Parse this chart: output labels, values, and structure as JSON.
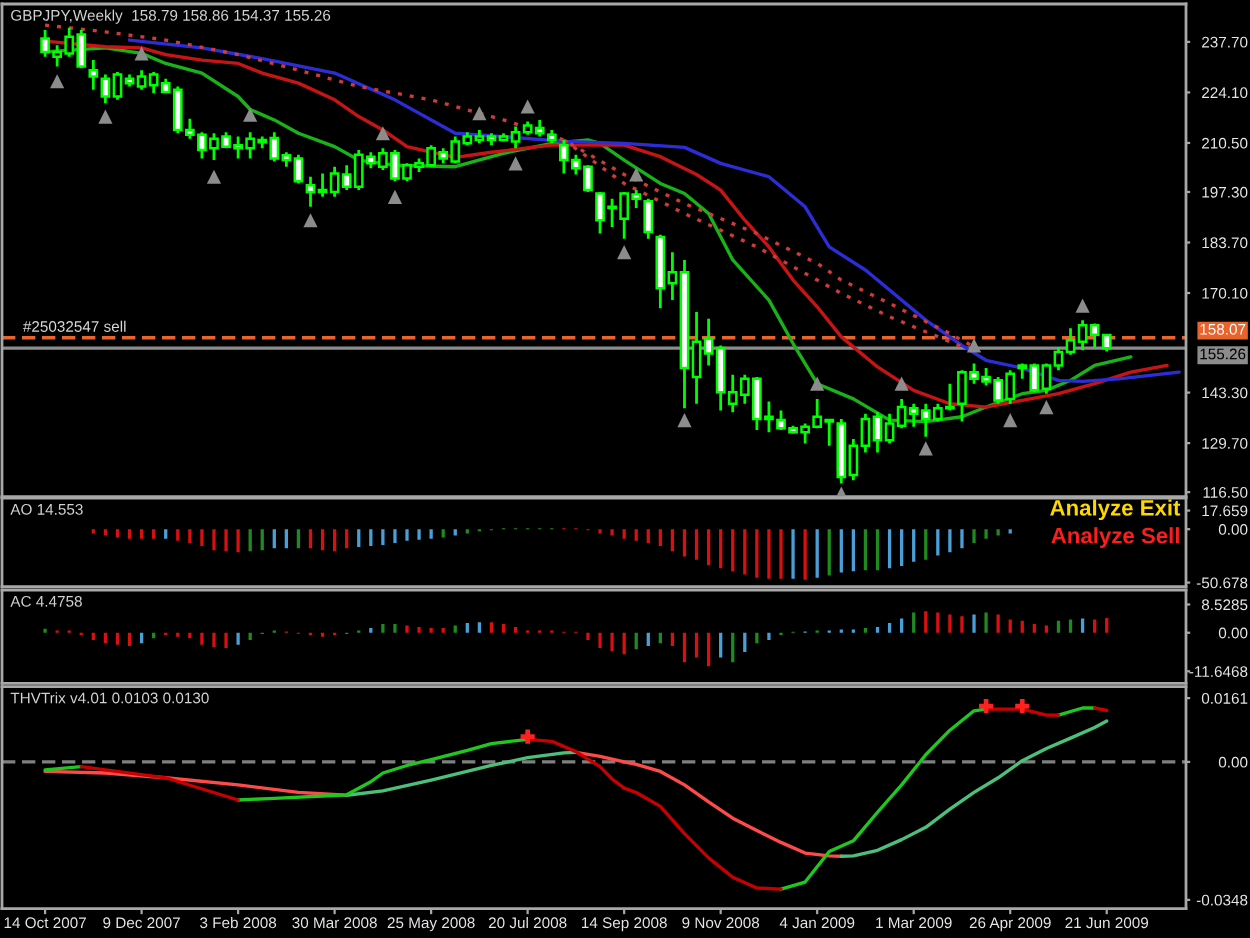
{
  "chart_data": [
    {
      "type": "candlestick",
      "title": "GBPJPY,Weekly  158.79 158.86 154.37 155.26",
      "color": "#00ff00",
      "x": [
        "2007-10-14",
        "2007-10-21",
        "2007-10-28",
        "2007-11-04",
        "2007-11-11",
        "2007-11-18",
        "2007-11-25",
        "2007-12-02",
        "2007-12-09",
        "2007-12-16",
        "2007-12-23",
        "2007-12-30",
        "2008-01-06",
        "2008-01-13",
        "2008-01-20",
        "2008-01-27",
        "2008-02-03",
        "2008-02-10",
        "2008-02-17",
        "2008-02-24",
        "2008-03-02",
        "2008-03-09",
        "2008-03-16",
        "2008-03-23",
        "2008-03-30",
        "2008-04-06",
        "2008-04-13",
        "2008-04-20",
        "2008-04-27",
        "2008-05-04",
        "2008-05-11",
        "2008-05-18",
        "2008-05-25",
        "2008-06-01",
        "2008-06-08",
        "2008-06-15",
        "2008-06-22",
        "2008-06-29",
        "2008-07-06",
        "2008-07-13",
        "2008-07-20",
        "2008-07-27",
        "2008-08-03",
        "2008-08-10",
        "2008-08-17",
        "2008-08-24",
        "2008-08-31",
        "2008-09-07",
        "2008-09-14",
        "2008-09-21",
        "2008-09-28",
        "2008-10-05",
        "2008-10-12",
        "2008-10-19",
        "2008-10-26",
        "2008-11-02",
        "2008-11-09",
        "2008-11-16",
        "2008-11-23",
        "2008-11-30",
        "2008-12-07",
        "2008-12-14",
        "2008-12-21",
        "2008-12-28",
        "2009-01-04",
        "2009-01-11",
        "2009-01-18",
        "2009-01-25",
        "2009-02-01",
        "2009-02-08",
        "2009-02-15",
        "2009-02-22",
        "2009-03-01",
        "2009-03-08",
        "2009-03-15",
        "2009-03-22",
        "2009-03-29",
        "2009-04-05",
        "2009-04-12",
        "2009-04-19",
        "2009-04-26",
        "2009-05-03",
        "2009-05-10",
        "2009-05-17",
        "2009-05-24",
        "2009-05-31",
        "2009-06-07",
        "2009-06-14",
        "2009-06-21"
      ],
      "ohlc": [
        [
          238.6,
          240.9,
          233.7,
          235.0
        ],
        [
          233.7,
          236.8,
          231.1,
          235.0
        ],
        [
          234.6,
          241.5,
          233.7,
          239.1
        ],
        [
          239.7,
          240.9,
          230.6,
          231.1
        ],
        [
          230.1,
          232.8,
          224.8,
          228.4
        ],
        [
          227.8,
          228.9,
          221.2,
          223.0
        ],
        [
          223.0,
          229.6,
          222.1,
          228.9
        ],
        [
          227.8,
          228.9,
          225.7,
          226.6
        ],
        [
          225.7,
          230.1,
          224.8,
          228.4
        ],
        [
          226.0,
          229.6,
          223.9,
          228.9
        ],
        [
          226.6,
          227.8,
          223.9,
          224.2
        ],
        [
          224.8,
          225.7,
          213.1,
          214.0
        ],
        [
          214.0,
          217.0,
          211.6,
          212.7
        ],
        [
          212.7,
          213.4,
          206.3,
          208.6
        ],
        [
          209.1,
          213.1,
          205.9,
          211.6
        ],
        [
          212.2,
          213.4,
          209.1,
          209.5
        ],
        [
          209.9,
          212.2,
          206.3,
          209.1
        ],
        [
          209.1,
          213.4,
          206.3,
          211.6
        ],
        [
          211.3,
          212.2,
          209.1,
          210.7
        ],
        [
          211.8,
          213.4,
          205.5,
          206.3
        ],
        [
          207.2,
          208.0,
          204.1,
          205.9
        ],
        [
          206.3,
          207.3,
          199.6,
          200.2
        ],
        [
          199.1,
          201.4,
          193.3,
          197.3
        ],
        [
          197.3,
          202.3,
          196.0,
          197.8
        ],
        [
          197.3,
          204.1,
          196.0,
          202.3
        ],
        [
          202.0,
          204.5,
          197.8,
          198.7
        ],
        [
          198.7,
          208.6,
          197.8,
          207.3
        ],
        [
          206.8,
          208.0,
          203.7,
          205.0
        ],
        [
          204.1,
          209.1,
          203.2,
          207.7
        ],
        [
          207.7,
          208.6,
          200.2,
          200.9
        ],
        [
          200.9,
          205.0,
          200.2,
          204.5
        ],
        [
          204.1,
          206.3,
          202.7,
          205.0
        ],
        [
          204.5,
          209.9,
          204.1,
          209.1
        ],
        [
          208.0,
          209.1,
          205.0,
          206.3
        ],
        [
          205.5,
          212.2,
          205.0,
          210.9
        ],
        [
          210.4,
          213.4,
          209.9,
          212.2
        ],
        [
          211.3,
          214.0,
          210.4,
          212.2
        ],
        [
          212.2,
          213.1,
          209.9,
          211.3
        ],
        [
          211.3,
          213.1,
          210.9,
          212.2
        ],
        [
          210.9,
          214.9,
          209.1,
          213.4
        ],
        [
          213.4,
          216.3,
          212.7,
          215.2
        ],
        [
          214.5,
          216.7,
          212.2,
          213.1
        ],
        [
          212.7,
          214.0,
          210.4,
          211.3
        ],
        [
          209.9,
          211.3,
          202.3,
          205.9
        ],
        [
          205.9,
          207.3,
          202.0,
          203.7
        ],
        [
          204.1,
          204.5,
          197.3,
          197.8
        ],
        [
          196.9,
          197.3,
          186.1,
          189.7
        ],
        [
          193.3,
          195.5,
          187.9,
          193.0
        ],
        [
          190.1,
          197.3,
          184.7,
          196.9
        ],
        [
          196.6,
          197.8,
          193.0,
          195.5
        ],
        [
          194.8,
          195.5,
          184.7,
          186.5
        ],
        [
          185.2,
          185.8,
          166.0,
          171.4
        ],
        [
          172.7,
          181.1,
          168.2,
          175.7
        ],
        [
          175.7,
          179.0,
          139.1,
          149.9
        ],
        [
          147.5,
          165.0,
          140.3,
          157.0
        ],
        [
          157.8,
          163.2,
          150.6,
          153.8
        ],
        [
          155.3,
          156.0,
          138.5,
          143.4
        ],
        [
          140.3,
          148.1,
          138.0,
          143.4
        ],
        [
          142.7,
          148.1,
          140.3,
          147.0
        ],
        [
          147.0,
          147.5,
          133.2,
          136.2
        ],
        [
          136.8,
          140.9,
          132.6,
          136.2
        ],
        [
          135.9,
          138.5,
          133.2,
          133.7
        ],
        [
          133.7,
          134.4,
          132.3,
          132.6
        ],
        [
          132.6,
          135.0,
          129.6,
          134.1
        ],
        [
          134.1,
          141.6,
          133.7,
          136.8
        ],
        [
          135.9,
          136.2,
          129.0,
          135.5
        ],
        [
          135.0,
          136.2,
          118.8,
          120.6
        ],
        [
          121.1,
          130.8,
          119.7,
          129.0
        ],
        [
          129.0,
          137.6,
          127.2,
          136.2
        ],
        [
          136.8,
          138.0,
          127.2,
          130.5
        ],
        [
          130.5,
          137.6,
          129.6,
          135.0
        ],
        [
          134.4,
          141.6,
          133.7,
          139.4
        ],
        [
          139.1,
          140.3,
          134.1,
          137.6
        ],
        [
          138.5,
          140.3,
          131.4,
          136.2
        ],
        [
          136.2,
          140.3,
          135.5,
          139.1
        ],
        [
          139.1,
          145.7,
          138.5,
          139.4
        ],
        [
          140.3,
          149.3,
          135.5,
          148.8
        ],
        [
          148.8,
          151.1,
          145.7,
          147.0
        ],
        [
          147.5,
          149.9,
          145.2,
          146.3
        ],
        [
          146.6,
          147.5,
          140.3,
          141.2
        ],
        [
          141.6,
          149.3,
          140.3,
          148.4
        ],
        [
          149.9,
          151.1,
          147.0,
          150.6
        ],
        [
          150.6,
          151.1,
          143.4,
          143.9
        ],
        [
          144.3,
          151.1,
          143.0,
          150.6
        ],
        [
          150.6,
          155.6,
          149.3,
          154.2
        ],
        [
          154.2,
          160.6,
          153.5,
          157.4
        ],
        [
          157.0,
          162.8,
          154.7,
          161.4
        ],
        [
          161.4,
          161.9,
          155.6,
          158.9
        ],
        [
          158.79,
          158.86,
          154.37,
          155.26
        ]
      ],
      "series": [
        {
          "type": "line",
          "color": "#19b319",
          "x": [
            "2007-10-14",
            "2007-11-18",
            "2007-12-09",
            "2007-12-23",
            "2008-01-13",
            "2008-02-03",
            "2008-02-10",
            "2008-02-24",
            "2008-03-09",
            "2008-03-30",
            "2008-04-13",
            "2008-05-04",
            "2008-06-08",
            "2008-07-06",
            "2008-08-03",
            "2008-08-24",
            "2008-08-31",
            "2008-09-14",
            "2008-10-05",
            "2008-10-19",
            "2008-11-02",
            "2008-11-16",
            "2008-12-07",
            "2008-12-21",
            "2009-01-04",
            "2009-01-25",
            "2009-02-15",
            "2009-03-08",
            "2009-03-29",
            "2009-04-12",
            "2009-05-03",
            "2009-05-17",
            "2009-05-31",
            "2009-06-14",
            "2009-07-05"
          ],
          "values": [
            235.0,
            236.1,
            234.6,
            231.9,
            229.3,
            223.0,
            219.5,
            216.7,
            213.1,
            209.5,
            205.9,
            204.5,
            204.1,
            207.7,
            210.4,
            211.3,
            210.4,
            205.9,
            199.6,
            196.9,
            191.5,
            179.0,
            168.2,
            156.5,
            145.7,
            141.6,
            135.9,
            135.5,
            136.8,
            139.4,
            143.0,
            143.9,
            146.6,
            150.6,
            152.9
          ]
        },
        {
          "type": "line",
          "color": "#c81414",
          "x": [
            "2007-10-14",
            "2007-11-18",
            "2007-12-09",
            "2007-12-23",
            "2008-01-13",
            "2008-02-03",
            "2008-02-17",
            "2008-03-09",
            "2008-03-30",
            "2008-04-13",
            "2008-04-27",
            "2008-05-11",
            "2008-05-25",
            "2008-06-08",
            "2008-06-29",
            "2008-08-03",
            "2008-09-14",
            "2008-10-05",
            "2008-10-26",
            "2008-11-09",
            "2008-11-23",
            "2008-12-07",
            "2008-12-21",
            "2009-01-04",
            "2009-01-18",
            "2009-01-25",
            "2009-02-08",
            "2009-03-01",
            "2009-03-22",
            "2009-04-12",
            "2009-05-03",
            "2009-05-24",
            "2009-06-14",
            "2009-07-05",
            "2009-07-26"
          ],
          "values": [
            237.9,
            236.4,
            236.1,
            234.3,
            232.8,
            231.9,
            229.3,
            226.6,
            222.1,
            217.6,
            214.0,
            209.5,
            208.0,
            206.6,
            208.0,
            209.9,
            209.9,
            206.8,
            202.0,
            197.8,
            189.7,
            182.5,
            173.6,
            166.4,
            158.3,
            155.6,
            150.2,
            143.9,
            140.3,
            139.4,
            141.2,
            143.0,
            145.7,
            148.8,
            150.6
          ]
        },
        {
          "type": "line",
          "color": "#2d2dd8",
          "x": [
            "2007-12-02",
            "2008-01-13",
            "2008-02-17",
            "2008-03-30",
            "2008-05-04",
            "2008-06-08",
            "2008-07-06",
            "2008-08-10",
            "2008-09-14",
            "2008-10-19",
            "2008-11-09",
            "2008-12-07",
            "2008-12-28",
            "2009-01-11",
            "2009-02-01",
            "2009-02-15",
            "2009-03-08",
            "2009-03-29",
            "2009-04-12",
            "2009-05-03",
            "2009-05-24",
            "2009-06-07",
            "2009-06-28",
            "2009-08-02"
          ],
          "values": [
            238.2,
            236.1,
            233.2,
            229.3,
            222.1,
            213.1,
            212.2,
            210.9,
            210.4,
            209.3,
            205.0,
            201.4,
            193.3,
            182.5,
            176.3,
            170.9,
            162.8,
            156.0,
            152.0,
            149.9,
            146.6,
            146.3,
            147.0,
            148.8
          ]
        },
        {
          "type": "line",
          "color": "#d03a3a",
          "line_style": "dotted",
          "x": [
            "2007-10-14",
            "2007-11-18",
            "2007-12-23",
            "2008-02-03",
            "2008-03-09",
            "2008-04-13",
            "2008-05-25",
            "2008-07-06",
            "2008-08-10",
            "2008-09-14",
            "2008-10-19",
            "2008-11-30",
            "2009-01-04",
            "2009-01-18",
            "2009-02-15",
            "2009-03-22",
            "2009-04-05"
          ],
          "values": [
            242.2,
            240.4,
            238.2,
            234.3,
            230.1,
            225.7,
            222.1,
            216.7,
            211.3,
            202.0,
            194.2,
            186.1,
            178.1,
            173.6,
            167.3,
            159.2,
            155.6
          ]
        },
        {
          "type": "line",
          "color": "#d03a3a",
          "line_style": "dotted",
          "x": [
            "2008-08-10",
            "2008-09-14",
            "2008-10-19",
            "2008-11-30",
            "2009-01-04",
            "2009-01-18",
            "2009-02-15",
            "2009-03-22",
            "2009-03-29"
          ],
          "values": [
            211.3,
            199.6,
            191.5,
            182.5,
            173.6,
            170.0,
            163.7,
            157.0,
            155.6
          ]
        },
        {
          "type": "scatter",
          "color": "#8c8c8c",
          "marker": "triangle",
          "x": [
            "2007-12-09",
            "2008-02-10",
            "2008-04-27",
            "2008-06-22",
            "2008-07-20",
            "2008-09-21",
            "2009-01-04",
            "2009-02-22",
            "2009-04-05",
            "2009-06-07"
          ],
          "values": [
            234.6,
            218.1,
            213.1,
            218.5,
            220.3,
            202.0,
            145.7,
            145.7,
            156.0,
            166.7
          ]
        },
        {
          "type": "scatter",
          "color": "#8c8c8c",
          "marker": "triangle",
          "x": [
            "2007-10-21",
            "2007-11-18",
            "2008-01-20",
            "2008-03-16",
            "2008-05-04",
            "2008-07-13",
            "2008-09-14",
            "2008-10-19",
            "2009-01-18",
            "2009-03-08",
            "2009-04-26",
            "2009-05-17"
          ],
          "values": [
            227.1,
            217.6,
            201.4,
            189.7,
            196.0,
            205.0,
            181.1,
            135.9,
            116.1,
            128.3,
            135.9,
            139.4
          ]
        }
      ],
      "xlim": [
        "2007-09-19",
        "2009-08-06"
      ],
      "ylim": [
        115.3,
        247.9
      ],
      "yticks": [
        {
          "value": 237.7,
          "label": "237.70"
        },
        {
          "value": 224.1,
          "label": "224.10"
        },
        {
          "value": 210.5,
          "label": "210.50"
        },
        {
          "value": 197.3,
          "label": "197.30"
        },
        {
          "value": 183.7,
          "label": "183.70"
        },
        {
          "value": 170.1,
          "label": "170.10"
        },
        {
          "value": 143.3,
          "label": "143.30"
        },
        {
          "value": 129.7,
          "label": "129.70"
        },
        {
          "value": 116.5,
          "label": "116.50"
        }
      ],
      "tick_labels": "y",
      "ref_lines": [
        {
          "axis": "y",
          "value": 158.07,
          "label": "158.07",
          "color": "#e8642c",
          "line_style": "dashed"
        },
        {
          "axis": "y",
          "value": 155.26,
          "label": "155.26",
          "color": "#8c8c8c",
          "line_style": "solid"
        }
      ],
      "annotations": [
        {
          "text": "#25032547 sell",
          "x": "2007-10-14",
          "y": 158.07
        }
      ]
    },
    {
      "type": "bar",
      "title": "AO 14.553",
      "x": [
        "2007-11-11",
        "2007-11-18",
        "2007-11-25",
        "2007-12-02",
        "2007-12-09",
        "2007-12-16",
        "2007-12-23",
        "2007-12-30",
        "2008-01-06",
        "2008-01-13",
        "2008-01-20",
        "2008-01-27",
        "2008-02-03",
        "2008-02-10",
        "2008-02-17",
        "2008-02-24",
        "2008-03-02",
        "2008-03-09",
        "2008-03-16",
        "2008-03-23",
        "2008-03-30",
        "2008-04-06",
        "2008-04-13",
        "2008-04-20",
        "2008-04-27",
        "2008-05-04",
        "2008-05-11",
        "2008-05-18",
        "2008-05-25",
        "2008-06-01",
        "2008-06-08",
        "2008-06-15",
        "2008-06-22",
        "2008-06-29",
        "2008-07-06",
        "2008-07-13",
        "2008-07-20",
        "2008-07-27",
        "2008-08-03",
        "2008-08-10",
        "2008-08-17",
        "2008-08-24",
        "2008-08-31",
        "2008-09-07",
        "2008-09-14",
        "2008-09-21",
        "2008-09-28",
        "2008-10-05",
        "2008-10-12",
        "2008-10-19",
        "2008-10-26",
        "2008-11-02",
        "2008-11-09",
        "2008-11-16",
        "2008-11-23",
        "2008-11-30",
        "2008-12-07",
        "2008-12-14",
        "2008-12-21",
        "2008-12-28",
        "2009-01-04",
        "2009-01-11",
        "2009-01-18",
        "2009-01-25",
        "2009-02-01",
        "2009-02-08",
        "2009-02-15",
        "2009-02-22",
        "2009-03-01",
        "2009-03-08",
        "2009-03-15",
        "2009-03-22",
        "2009-03-29",
        "2009-04-05",
        "2009-04-12",
        "2009-04-19",
        "2009-04-26"
      ],
      "values": [
        -4,
        -6,
        -8,
        -9,
        -9,
        -9,
        -9,
        -11,
        -13,
        -16,
        -20,
        -21,
        -22,
        -21,
        -20,
        -18,
        -18,
        -18,
        -18,
        -20,
        -21,
        -18,
        -17,
        -16,
        -15,
        -13,
        -11,
        -10,
        -9,
        -8,
        -6,
        -4,
        -2,
        -1,
        1,
        1,
        1,
        1,
        1,
        1,
        1,
        -1,
        -4,
        -6,
        -9,
        -11,
        -13,
        -16,
        -21,
        -26,
        -29,
        -34,
        -37,
        -40,
        -43,
        -46,
        -47,
        -47,
        -47,
        -48,
        -46,
        -44,
        -41,
        -40,
        -39,
        -39,
        -37,
        -35,
        -31,
        -29,
        -25,
        -22,
        -18,
        -13,
        -9,
        -6,
        -4
      ],
      "colors": [
        "#d81010",
        "#d81010",
        "#d81010",
        "#d81010",
        "#d81010",
        "#d81010",
        "#4a9fd8",
        "#d81010",
        "#d81010",
        "#d81010",
        "#d81010",
        "#d81010",
        "#d81010",
        "#1f8a1f",
        "#1f8a1f",
        "#4a9fd8",
        "#4a9fd8",
        "#1f8a1f",
        "#d81010",
        "#d81010",
        "#d81010",
        "#d81010",
        "#4a9fd8",
        "#4a9fd8",
        "#4a9fd8",
        "#4a9fd8",
        "#4a9fd8",
        "#4a9fd8",
        "#4a9fd8",
        "#1f8a1f",
        "#4a9fd8",
        "#1f8a1f",
        "#1f8a1f",
        "#1f8a1f",
        "#1f8a1f",
        "#1f8a1f",
        "#1f8a1f",
        "#1f8a1f",
        "#1f8a1f",
        "#d81010",
        "#d81010",
        "#d81010",
        "#d81010",
        "#d81010",
        "#d81010",
        "#d81010",
        "#d81010",
        "#d81010",
        "#d81010",
        "#d81010",
        "#d81010",
        "#d81010",
        "#d81010",
        "#d81010",
        "#d81010",
        "#d81010",
        "#d81010",
        "#d81010",
        "#4a9fd8",
        "#d81010",
        "#4a9fd8",
        "#1f8a1f",
        "#4a9fd8",
        "#4a9fd8",
        "#1f8a1f",
        "#1f8a1f",
        "#4a9fd8",
        "#4a9fd8",
        "#4a9fd8",
        "#1f8a1f",
        "#4a9fd8",
        "#4a9fd8",
        "#4a9fd8",
        "#1f8a1f",
        "#1f8a1f",
        "#1f8a1f",
        "#4a9fd8"
      ],
      "xlim": [
        "2007-09-19",
        "2009-08-06"
      ],
      "ylim": [
        -54.5,
        29.6
      ],
      "yticks": [
        17.659,
        {
          "value": 0,
          "label": "0.00"
        },
        -50.678
      ],
      "tick_labels": "y",
      "annotations": [
        "Analyze Exit",
        "Analyze Sell"
      ]
    },
    {
      "type": "bar",
      "title": "AC 4.4758",
      "x": [
        "2007-10-14",
        "2007-10-21",
        "2007-10-28",
        "2007-11-04",
        "2007-11-11",
        "2007-11-18",
        "2007-11-25",
        "2007-12-02",
        "2007-12-09",
        "2007-12-16",
        "2007-12-23",
        "2007-12-30",
        "2008-01-06",
        "2008-01-13",
        "2008-01-20",
        "2008-01-27",
        "2008-02-03",
        "2008-02-10",
        "2008-02-17",
        "2008-02-24",
        "2008-03-02",
        "2008-03-09",
        "2008-03-16",
        "2008-03-23",
        "2008-03-30",
        "2008-04-06",
        "2008-04-13",
        "2008-04-20",
        "2008-04-27",
        "2008-05-04",
        "2008-05-11",
        "2008-05-18",
        "2008-05-25",
        "2008-06-01",
        "2008-06-08",
        "2008-06-15",
        "2008-06-22",
        "2008-06-29",
        "2008-07-06",
        "2008-07-13",
        "2008-07-20",
        "2008-07-27",
        "2008-08-03",
        "2008-08-10",
        "2008-08-17",
        "2008-08-24",
        "2008-08-31",
        "2008-09-07",
        "2008-09-14",
        "2008-09-21",
        "2008-09-28",
        "2008-10-05",
        "2008-10-12",
        "2008-10-19",
        "2008-10-26",
        "2008-11-02",
        "2008-11-09",
        "2008-11-16",
        "2008-11-23",
        "2008-11-30",
        "2008-12-07",
        "2008-12-14",
        "2008-12-21",
        "2008-12-28",
        "2009-01-04",
        "2009-01-11",
        "2009-01-18",
        "2009-01-25",
        "2009-02-01",
        "2009-02-08",
        "2009-02-15",
        "2009-02-22",
        "2009-03-01",
        "2009-03-08",
        "2009-03-15",
        "2009-03-22",
        "2009-03-29",
        "2009-04-05",
        "2009-04-12",
        "2009-04-19",
        "2009-04-26",
        "2009-05-03",
        "2009-05-10",
        "2009-05-17",
        "2009-05-24",
        "2009-05-31",
        "2009-06-07",
        "2009-06-14",
        "2009-06-21"
      ],
      "values": [
        1.2,
        0.7,
        0.7,
        -0.7,
        -2.2,
        -3.2,
        -3.6,
        -4.0,
        -3.2,
        -1.7,
        -0.7,
        -1.2,
        -1.7,
        -3.6,
        -4.3,
        -4.6,
        -3.6,
        -2.2,
        -0.4,
        0.7,
        0.4,
        -0.3,
        -0.7,
        -1.2,
        -0.7,
        -0.4,
        0.7,
        1.4,
        2.6,
        2.6,
        2.2,
        1.7,
        1.4,
        1.4,
        2.2,
        2.9,
        3.2,
        3.2,
        2.6,
        1.7,
        0.7,
        0.7,
        0.7,
        0.3,
        0.3,
        -2.2,
        -4.6,
        -5.5,
        -6.5,
        -5.0,
        -4.0,
        -3.2,
        -4.0,
        -8.9,
        -7.5,
        -10.1,
        -7.5,
        -8.9,
        -5.8,
        -3.2,
        -2.2,
        -0.7,
        0.3,
        0.4,
        0.7,
        0.7,
        1.0,
        1.0,
        1.4,
        1.7,
        2.9,
        4.3,
        6.1,
        6.5,
        6.1,
        5.5,
        5.0,
        5.5,
        6.1,
        5.5,
        4.0,
        3.6,
        2.6,
        2.2,
        3.6,
        4.0,
        4.3,
        4.0,
        4.4758
      ],
      "colors": [
        "#1f8a1f",
        "#d81010",
        "#d81010",
        "#d81010",
        "#d81010",
        "#d81010",
        "#d81010",
        "#d81010",
        "#4a9fd8",
        "#1f8a1f",
        "#d81010",
        "#d81010",
        "#d81010",
        "#d81010",
        "#d81010",
        "#d81010",
        "#4a9fd8",
        "#1f8a1f",
        "#1f8a1f",
        "#1f8a1f",
        "#d81010",
        "#d81010",
        "#d81010",
        "#d81010",
        "#d81010",
        "#1f8a1f",
        "#1f8a1f",
        "#4a9fd8",
        "#1f8a1f",
        "#1f8a1f",
        "#d81010",
        "#d81010",
        "#d81010",
        "#d81010",
        "#1f8a1f",
        "#4a9fd8",
        "#4a9fd8",
        "#d81010",
        "#d81010",
        "#d81010",
        "#d81010",
        "#d81010",
        "#d81010",
        "#d81010",
        "#d81010",
        "#d81010",
        "#d81010",
        "#d81010",
        "#d81010",
        "#1f8a1f",
        "#4a9fd8",
        "#1f8a1f",
        "#d81010",
        "#d81010",
        "#d81010",
        "#d81010",
        "#4a9fd8",
        "#1f8a1f",
        "#4a9fd8",
        "#1f8a1f",
        "#4a9fd8",
        "#1f8a1f",
        "#1f8a1f",
        "#4a9fd8",
        "#1f8a1f",
        "#4a9fd8",
        "#4a9fd8",
        "#4a9fd8",
        "#1f8a1f",
        "#4a9fd8",
        "#4a9fd8",
        "#4a9fd8",
        "#1f8a1f",
        "#d81010",
        "#d81010",
        "#d81010",
        "#d81010",
        "#4a9fd8",
        "#1f8a1f",
        "#d81010",
        "#d81010",
        "#d81010",
        "#d81010",
        "#d81010",
        "#1f8a1f",
        "#1f8a1f",
        "#4a9fd8",
        "#d81010",
        "#d81010"
      ],
      "xlim": [
        "2007-09-19",
        "2009-08-06"
      ],
      "ylim": [
        -15.3,
        12.9
      ],
      "yticks": [
        8.5285,
        {
          "value": 0,
          "label": "0.00"
        },
        -11.6468
      ],
      "tick_labels": "y"
    },
    {
      "type": "line",
      "title": "THVTrix v4.01 0.0103 0.0130",
      "series": [
        {
          "type": "line",
          "color": "#ff4a4a",
          "x": [
            "2007-10-14",
            "2007-11-18",
            "2007-12-23",
            "2008-02-03",
            "2008-03-09",
            "2008-04-06",
            "2008-04-27",
            "2008-05-25",
            "2008-06-29",
            "2008-07-20",
            "2008-08-10",
            "2008-08-17",
            "2008-08-31",
            "2008-09-14",
            "2008-09-21",
            "2008-10-05",
            "2008-10-19",
            "2008-11-02",
            "2008-11-16",
            "2008-11-30",
            "2008-12-14",
            "2008-12-28",
            "2009-01-11",
            "2009-01-18"
          ],
          "values": [
            -0.0024,
            -0.0028,
            -0.004,
            -0.0058,
            -0.0077,
            -0.0084,
            null,
            null,
            null,
            null,
            null,
            0.0024,
            0.0014,
            0.0,
            -0.0006,
            -0.0024,
            -0.0058,
            -0.0101,
            -0.0142,
            -0.0173,
            -0.0203,
            -0.023,
            -0.0237,
            -0.0238
          ]
        },
        {
          "type": "line",
          "color": "#4cc07a",
          "x": [
            "2008-04-06",
            "2008-04-27",
            "2008-05-25",
            "2008-06-29",
            "2008-07-20",
            "2008-08-10",
            "2008-08-17",
            "2008-08-31",
            "2008-09-14",
            "2008-09-21",
            "2008-10-05",
            "2008-10-19",
            "2008-11-02",
            "2008-11-16",
            "2008-11-30",
            "2008-12-14",
            "2008-12-28",
            "2009-01-11",
            "2009-01-18",
            "2009-01-25",
            "2009-02-08",
            "2009-02-22",
            "2009-03-08",
            "2009-03-22",
            "2009-04-05",
            "2009-04-19",
            "2009-05-03",
            "2009-05-17",
            "2009-05-31",
            "2009-06-14",
            "2009-06-21"
          ],
          "values": [
            -0.0084,
            -0.0073,
            -0.0046,
            -0.0009,
            0.0011,
            0.0023,
            0.0024,
            null,
            null,
            null,
            null,
            null,
            null,
            null,
            null,
            null,
            null,
            null,
            -0.0238,
            -0.0237,
            -0.0223,
            -0.0196,
            -0.0165,
            -0.0119,
            -0.0077,
            -0.004,
            0.0003,
            0.0034,
            0.006,
            0.0087,
            0.0103
          ]
        },
        {
          "type": "line",
          "color": "#1ec81e",
          "x": [
            "2007-10-14",
            "2007-11-04",
            "2007-11-18",
            "2007-12-23",
            "2008-02-03",
            "2008-02-24",
            "2008-03-23",
            "2008-04-06",
            "2008-04-20",
            "2008-04-27",
            "2008-05-11",
            "2008-05-25",
            "2008-06-15",
            "2008-06-29",
            "2008-07-20",
            "2008-08-03",
            "2008-08-17",
            "2008-08-31",
            "2008-09-07",
            "2008-09-14",
            "2008-09-21",
            "2008-10-05",
            "2008-10-19",
            "2008-11-02",
            "2008-11-16",
            "2008-11-30",
            "2008-12-14",
            "2008-12-28",
            "2009-01-11",
            "2009-01-25",
            "2009-02-08",
            "2009-02-22",
            "2009-03-08",
            "2009-03-22",
            "2009-04-05",
            "2009-04-12",
            "2009-04-19",
            "2009-05-03",
            "2009-05-17",
            "2009-05-24",
            "2009-06-07",
            "2009-06-14"
          ],
          "values": [
            -0.002,
            -0.0012,
            null,
            null,
            -0.0096,
            -0.0092,
            -0.0086,
            -0.0083,
            -0.005,
            -0.0028,
            -0.0009,
            0.0006,
            0.0029,
            0.0046,
            0.0057,
            null,
            null,
            null,
            null,
            null,
            null,
            null,
            null,
            null,
            null,
            null,
            -0.0321,
            -0.0303,
            -0.0226,
            -0.0199,
            -0.0127,
            -0.0058,
            0.0018,
            0.008,
            0.0129,
            0.0133,
            null,
            null,
            null,
            0.0118,
            0.0136,
            0.0136
          ]
        },
        {
          "type": "line",
          "color": "#c80000",
          "x": [
            "2007-11-04",
            "2007-11-18",
            "2007-12-23",
            "2008-02-03",
            "2008-02-24",
            "2008-03-23",
            "2008-04-06",
            "2008-04-20",
            "2008-04-27",
            "2008-05-11",
            "2008-05-25",
            "2008-06-15",
            "2008-06-29",
            "2008-07-20",
            "2008-08-03",
            "2008-08-17",
            "2008-08-31",
            "2008-09-07",
            "2008-09-14",
            "2008-09-21",
            "2008-10-05",
            "2008-10-19",
            "2008-11-02",
            "2008-11-16",
            "2008-11-30",
            "2008-12-14",
            "2008-12-28",
            "2009-01-11",
            "2009-01-25",
            "2009-02-08",
            "2009-02-22",
            "2009-03-08",
            "2009-03-22",
            "2009-04-05",
            "2009-04-12",
            "2009-04-19",
            "2009-05-03",
            "2009-05-17",
            "2009-05-24",
            "2009-06-07",
            "2009-06-14",
            "2009-06-21"
          ],
          "values": [
            -0.0012,
            -0.002,
            -0.004,
            -0.0096,
            null,
            null,
            null,
            null,
            null,
            null,
            null,
            null,
            null,
            0.0057,
            0.0052,
            0.0026,
            -0.0012,
            -0.0043,
            -0.0066,
            -0.0077,
            -0.0112,
            -0.0181,
            -0.0242,
            -0.0291,
            -0.0318,
            -0.0321,
            null,
            null,
            null,
            null,
            null,
            null,
            null,
            null,
            0.0133,
            0.0133,
            0.0133,
            0.0118,
            0.0118,
            null,
            0.0136,
            0.013
          ]
        },
        {
          "type": "scatter",
          "color": "#ff2020",
          "marker": "cross",
          "x": [
            "2008-07-20",
            "2009-04-12",
            "2009-05-03"
          ],
          "values": [
            0.0064,
            0.0141,
            0.0141
          ]
        }
      ],
      "xlim": [
        "2007-09-19",
        "2009-08-06"
      ],
      "ylim": [
        -0.037,
        0.019
      ],
      "yticks": [
        0.0161,
        {
          "value": 0,
          "label": "0.00"
        },
        -0.0348
      ],
      "xticks": [
        {
          "value": "2007-10-14",
          "label": "14 Oct 2007"
        },
        {
          "value": "2007-12-09",
          "label": "9 Dec 2007"
        },
        {
          "value": "2008-02-03",
          "label": "3 Feb 2008"
        },
        {
          "value": "2008-03-30",
          "label": "30 Mar 2008"
        },
        {
          "value": "2008-05-25",
          "label": "25 May 2008"
        },
        {
          "value": "2008-07-20",
          "label": "20 Jul 2008"
        },
        {
          "value": "2008-09-14",
          "label": "14 Sep 2008"
        },
        {
          "value": "2008-11-09",
          "label": "9 Nov 2008"
        },
        {
          "value": "2009-01-04",
          "label": "4 Jan 2009"
        },
        {
          "value": "2009-03-01",
          "label": "1 Mar 2009"
        },
        {
          "value": "2009-04-26",
          "label": "26 Apr 2009"
        },
        {
          "value": "2009-06-21",
          "label": "21 Jun 2009"
        }
      ],
      "ref_lines": [
        {
          "axis": "y",
          "value": 0,
          "color": "#808080",
          "line_style": "dashed"
        }
      ]
    }
  ]
}
